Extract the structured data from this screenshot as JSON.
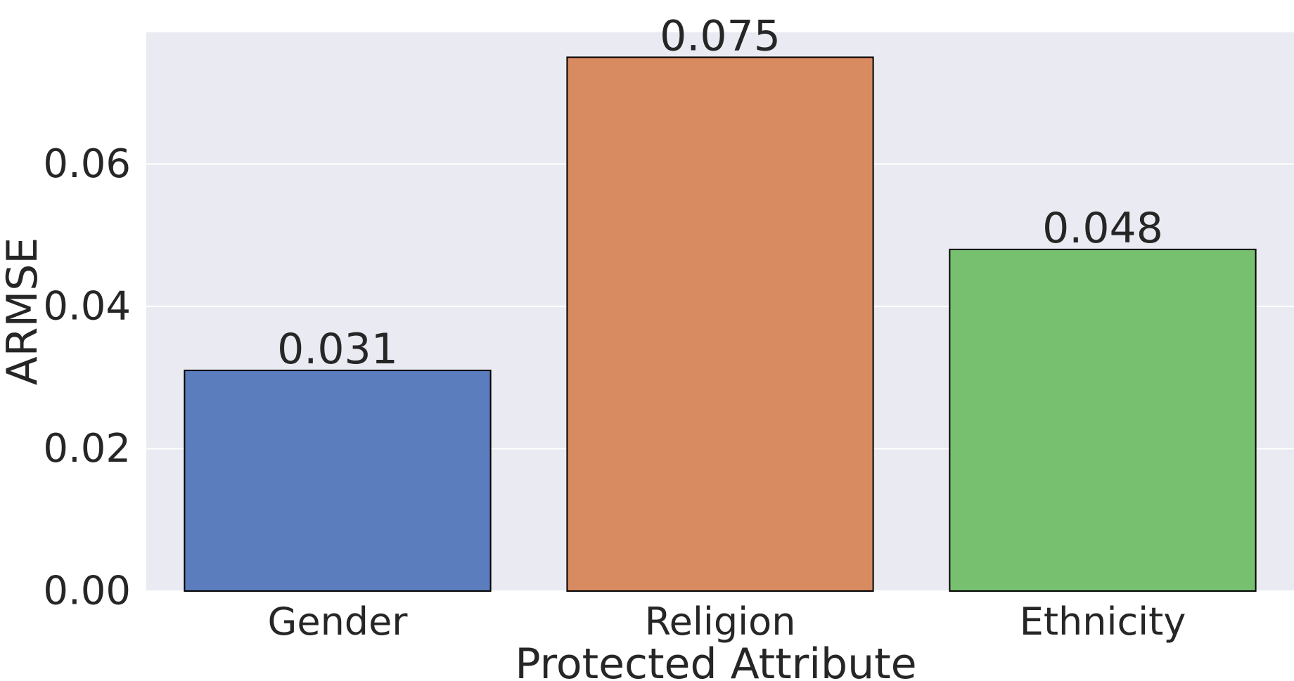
{
  "chart_data": {
    "type": "bar",
    "title": "",
    "xlabel": "Protected Attribute",
    "ylabel": "ARMSE",
    "categories": [
      "Gender",
      "Religion",
      "Ethnicity"
    ],
    "values": [
      0.031,
      0.075,
      0.048
    ],
    "data_labels": [
      "0.031",
      "0.075",
      "0.048"
    ],
    "bar_colors": [
      "#5B7DBE",
      "#D88A60",
      "#76C06F"
    ],
    "background_color": "#EAEAF2",
    "grid_color": "#FFFFFF",
    "grid": true,
    "ylim": [
      0,
      0.0785
    ],
    "yticks": [
      0.0,
      0.02,
      0.04,
      0.06
    ],
    "ytick_labels": [
      "0.00",
      "0.02",
      "0.04",
      "0.06"
    ],
    "legend": "none"
  }
}
